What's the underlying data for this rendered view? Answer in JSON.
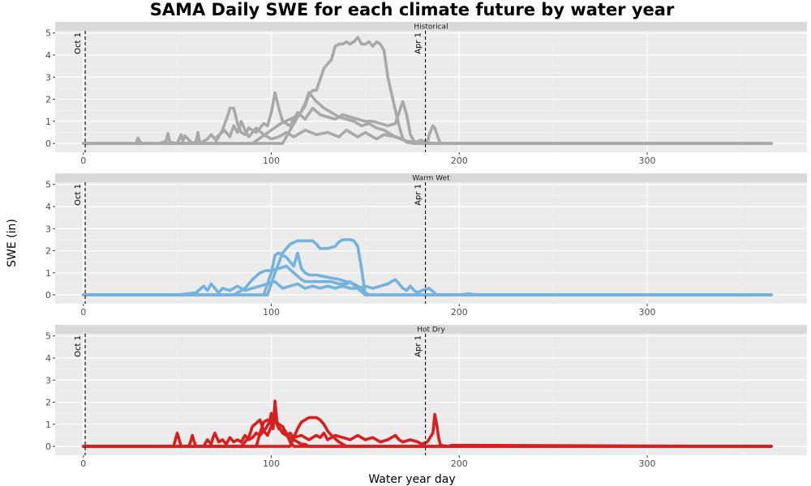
{
  "chart_data": {
    "type": "line",
    "title": "SAMA Daily SWE for each climate future by water year",
    "xlabel": "Water year day",
    "ylabel": "SWE (in)",
    "xlim": [
      -15,
      385
    ],
    "ylim": [
      -0.4,
      5.1
    ],
    "x_ticks": [
      0,
      100,
      200,
      300
    ],
    "y_ticks": [
      0,
      1,
      2,
      3,
      4,
      5
    ],
    "grid": true,
    "vlines": [
      {
        "x": 1,
        "label": "Oct 1"
      },
      {
        "x": 182,
        "label": "Apr 1"
      }
    ],
    "panels": [
      {
        "name": "Historical",
        "color": "#a9a9a9",
        "series": [
          {
            "x": [
              0,
              20,
              28,
              29,
              30,
              31,
              40,
              44,
              45,
              46,
              50,
              52,
              53,
              54,
              58,
              60,
              61,
              62,
              66,
              68,
              70,
              75,
              78,
              80,
              82,
              84,
              86,
              88,
              92,
              96,
              100,
              104,
              108,
              112,
              118,
              124,
              130,
              136,
              140,
              146,
              150,
              156,
              160,
              166,
              172,
              178,
              182,
              186,
              190,
              196,
              210,
              220,
              366
            ],
            "values": [
              0,
              0,
              0,
              0.25,
              0.1,
              0,
              0,
              0.1,
              0.45,
              0.05,
              0,
              0.4,
              0.1,
              0.35,
              0,
              0.1,
              0.5,
              0,
              0.2,
              0.4,
              0.2,
              0.6,
              0.3,
              0.8,
              0.5,
              1.0,
              0.6,
              0.3,
              0.7,
              0.4,
              0.2,
              0.3,
              0.5,
              0.3,
              0.6,
              0.4,
              0.5,
              0.3,
              0.6,
              0.3,
              0.5,
              0.2,
              0.4,
              0.3,
              0.1,
              0.05,
              0.05,
              0,
              0,
              0,
              0,
              0,
              0
            ]
          },
          {
            "x": [
              0,
              70,
              74,
              77,
              78,
              80,
              82,
              84,
              86,
              88,
              92,
              96,
              98,
              100,
              102,
              104,
              106,
              110,
              114,
              118,
              122,
              126,
              130,
              134,
              138,
              142,
              146,
              150,
              154,
              158,
              162,
              166,
              170,
              172,
              174,
              176,
              178,
              180,
              200,
              366
            ],
            "values": [
              0,
              0,
              0.6,
              1.3,
              1.6,
              1.6,
              0.9,
              0.5,
              0.4,
              0.7,
              0.5,
              0.9,
              0.8,
              1.4,
              2.3,
              1.6,
              1.0,
              0.8,
              1.4,
              1.1,
              1.6,
              1.3,
              1.2,
              1.1,
              1.3,
              1.2,
              1.1,
              1.0,
              1.0,
              0.9,
              0.8,
              0.9,
              1.9,
              1.3,
              0.4,
              0.1,
              0,
              0,
              0,
              0
            ]
          },
          {
            "x": [
              0,
              90,
              95,
              100,
              105,
              110,
              115,
              118,
              120,
              124,
              128,
              132,
              136,
              140,
              144,
              148,
              152,
              156,
              160,
              164,
              166,
              170,
              172,
              176,
              180,
              366
            ],
            "values": [
              0,
              0,
              0.3,
              0.6,
              0.9,
              1.1,
              1.3,
              1.8,
              2.3,
              1.9,
              1.6,
              1.4,
              1.2,
              1.1,
              1.0,
              0.8,
              0.9,
              0.7,
              0.6,
              0.4,
              0.3,
              0.2,
              0.1,
              0,
              0,
              0
            ]
          },
          {
            "x": [
              0,
              106,
              110,
              114,
              118,
              120,
              122,
              124,
              126,
              128,
              130,
              132,
              134,
              136,
              138,
              140,
              142,
              144,
              146,
              148,
              150,
              152,
              154,
              156,
              158,
              160,
              162,
              166,
              168,
              170,
              172,
              176,
              178,
              180,
              183,
              184,
              186,
              187,
              189,
              190,
              192,
              366
            ],
            "values": [
              0,
              0,
              0.6,
              1.2,
              1.7,
              2.2,
              2.4,
              2.4,
              2.9,
              3.4,
              3.6,
              3.8,
              4.4,
              4.5,
              4.5,
              4.6,
              4.5,
              4.6,
              4.8,
              4.5,
              4.5,
              4.6,
              4.4,
              4.6,
              4.5,
              4.2,
              3.0,
              1.5,
              0.8,
              0.2,
              0.05,
              0,
              0.1,
              0.15,
              0,
              0.4,
              0.8,
              0.7,
              0.2,
              0,
              0,
              0
            ]
          }
        ]
      },
      {
        "name": "Warm Wet",
        "color": "#74b3de",
        "series": [
          {
            "x": [
              0,
              50,
              60,
              64,
              66,
              68,
              70,
              72,
              74,
              78,
              80,
              82,
              86,
              90,
              94,
              98,
              102,
              106,
              110,
              114,
              118,
              122,
              126,
              130,
              134,
              138,
              142,
              146,
              150,
              154,
              158,
              162,
              164,
              166,
              168,
              170,
              172,
              174,
              176,
              178,
              180,
              184,
              188,
              200,
              205,
              210,
              366
            ],
            "values": [
              0,
              0,
              0.1,
              0.4,
              0.2,
              0.5,
              0.3,
              0.1,
              0.3,
              0.2,
              0.3,
              0.4,
              0.2,
              0.3,
              0.4,
              0.5,
              0.6,
              0.3,
              0.4,
              0.5,
              0.3,
              0.4,
              0.3,
              0.4,
              0.3,
              0.4,
              0.3,
              0.3,
              0.4,
              0.3,
              0.4,
              0.5,
              0.6,
              0.7,
              0.5,
              0.3,
              0.2,
              0.4,
              0.2,
              0.1,
              0.2,
              0.3,
              0,
              0,
              0.05,
              0,
              0
            ]
          },
          {
            "x": [
              0,
              80,
              86,
              90,
              94,
              97,
              98,
              100,
              104,
              108,
              112,
              116,
              118,
              120,
              124,
              128,
              132,
              136,
              140,
              142,
              146,
              150,
              366
            ],
            "values": [
              0,
              0,
              0.3,
              0.7,
              1.0,
              1.1,
              1.1,
              1.1,
              1.2,
              1.3,
              1.0,
              0.7,
              0.6,
              0.6,
              0.6,
              0.6,
              0.6,
              0.5,
              0.5,
              0.6,
              0.3,
              0,
              0
            ]
          },
          {
            "x": [
              0,
              96,
              100,
              102,
              104,
              106,
              108,
              110,
              112,
              114,
              116,
              118,
              120,
              124,
              130,
              136,
              140,
              144,
              148,
              150,
              152,
              366
            ],
            "values": [
              0,
              0,
              1.0,
              1.8,
              1.9,
              1.8,
              1.7,
              1.5,
              1.3,
              1.9,
              1.2,
              1.0,
              0.9,
              0.9,
              0.8,
              0.7,
              0.6,
              0.5,
              0.3,
              0.1,
              0,
              0
            ]
          },
          {
            "x": [
              0,
              98,
              102,
              106,
              108,
              110,
              114,
              118,
              122,
              124,
              126,
              130,
              134,
              136,
              138,
              142,
              144,
              146,
              148,
              150,
              366
            ],
            "values": [
              0,
              0,
              1.0,
              1.9,
              2.1,
              2.3,
              2.45,
              2.45,
              2.45,
              2.3,
              2.1,
              2.1,
              2.2,
              2.4,
              2.5,
              2.5,
              2.45,
              2.2,
              1.2,
              0,
              0
            ]
          }
        ]
      },
      {
        "name": "Hot Dry",
        "color": "#d62020",
        "series": [
          {
            "x": [
              0,
              48,
              49,
              50,
              51,
              52,
              56,
              57,
              58,
              59,
              60,
              64,
              66,
              68,
              69,
              70,
              72,
              74,
              76,
              78,
              80,
              82,
              84,
              86,
              88,
              90,
              92,
              94,
              96,
              98,
              100,
              102,
              104,
              106,
              108,
              110,
              112,
              116,
              120,
              124,
              126,
              128,
              130,
              134,
              138,
              142,
              146,
              150,
              154,
              158,
              162,
              166,
              168,
              170,
              174,
              178,
              180,
              183,
              186,
              187,
              188,
              189,
              190,
              194,
              196,
              366
            ],
            "values": [
              0,
              0,
              0.3,
              0.6,
              0.3,
              0,
              0,
              0.2,
              0.5,
              0.2,
              0,
              0,
              0.3,
              0.1,
              0.4,
              0.6,
              0.2,
              0.3,
              0.1,
              0.4,
              0.2,
              0.3,
              0.2,
              0.5,
              0.3,
              0.4,
              0.6,
              0.5,
              0.7,
              0.5,
              0.9,
              1.2,
              0.8,
              0.7,
              0.5,
              0.6,
              0.4,
              0.5,
              0.3,
              0.5,
              0.4,
              0.6,
              0.3,
              0.5,
              0.4,
              0.3,
              0.5,
              0.3,
              0.4,
              0.2,
              0.3,
              0.5,
              0.3,
              0.2,
              0.3,
              0.2,
              0.1,
              0.2,
              0.6,
              1.45,
              1.0,
              0.4,
              0.05,
              0,
              0.05,
              0
            ]
          },
          {
            "x": [
              0,
              84,
              88,
              90,
              94,
              96,
              97,
              99,
              100,
              101,
              102,
              103,
              104,
              106,
              108,
              110,
              112,
              114,
              116,
              118,
              120,
              366
            ],
            "values": [
              0,
              0,
              0.4,
              0.9,
              1.2,
              0.7,
              0.8,
              1.1,
              1.5,
              0.8,
              2.05,
              1.1,
              0.9,
              0.6,
              0.5,
              0.4,
              0.3,
              0.2,
              0.1,
              0.1,
              0,
              0
            ]
          },
          {
            "x": [
              0,
              110,
              112,
              114,
              116,
              118,
              120,
              122,
              124,
              126,
              128,
              130,
              132,
              136,
              140,
              366
            ],
            "values": [
              0,
              0,
              0.4,
              0.8,
              1.1,
              1.2,
              1.3,
              1.3,
              1.3,
              1.2,
              1.0,
              0.7,
              0.5,
              0.2,
              0,
              0
            ]
          },
          {
            "x": [
              0,
              92,
              94,
              96,
              98,
              100,
              102,
              104,
              106,
              108,
              110,
              112,
              366
            ],
            "values": [
              0,
              0,
              0.6,
              1.1,
              1.2,
              1.0,
              1.2,
              1.0,
              0.9,
              0.6,
              0.2,
              0,
              0
            ]
          }
        ]
      }
    ]
  }
}
